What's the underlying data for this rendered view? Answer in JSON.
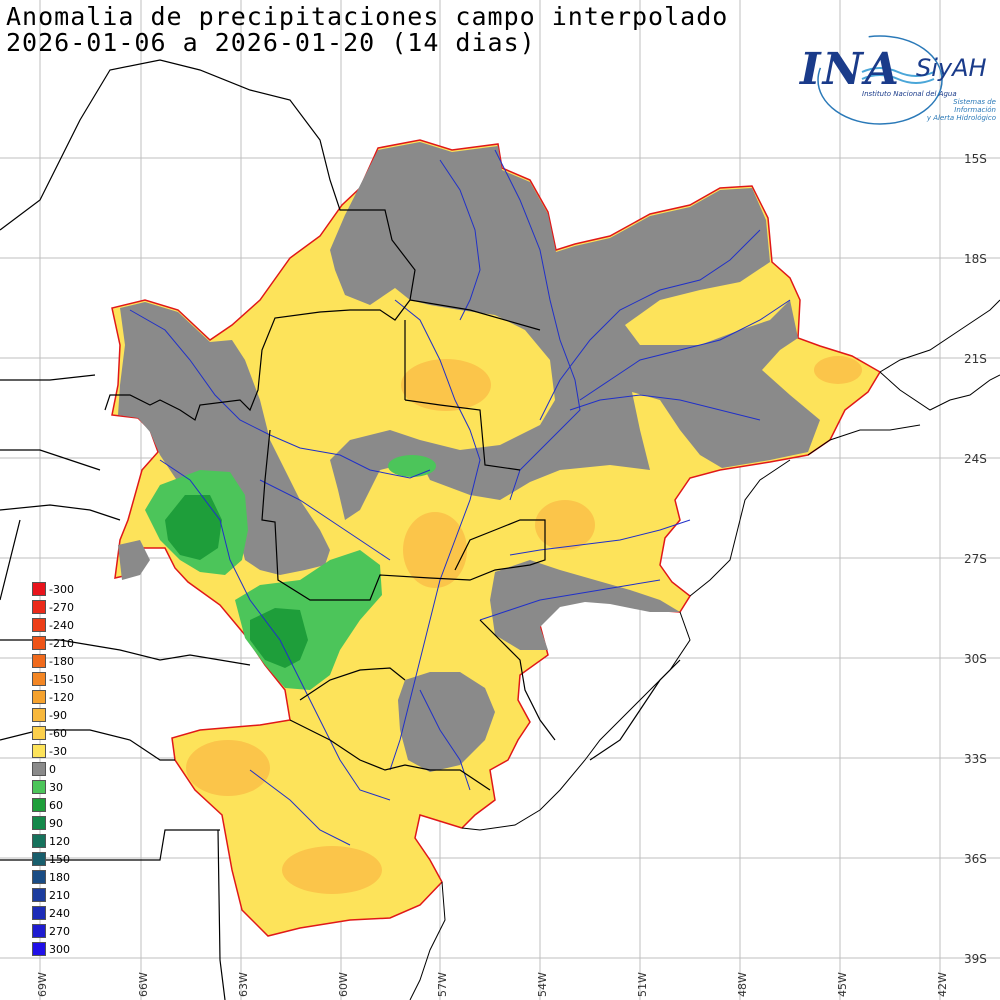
{
  "title_line1": "Anomalia de precipitaciones campo interpolado",
  "title_line2": "2026-01-06 a 2026-01-20 (14 dias)",
  "logo": {
    "acronym": "INA",
    "system": "SiyAH",
    "institute": "Instituto Nacional del Agua",
    "system_line1": "Sistemas de Información",
    "system_line2": "y Alerta Hidrológico"
  },
  "lat_labels": [
    "15S",
    "18S",
    "21S",
    "24S",
    "27S",
    "30S",
    "33S",
    "36S",
    "39S"
  ],
  "lon_labels": [
    "69W",
    "66W",
    "63W",
    "60W",
    "57W",
    "54W",
    "51W",
    "48W",
    "45W",
    "42W"
  ],
  "legend": [
    {
      "label": "-300",
      "color": "#e8141c"
    },
    {
      "label": "-270",
      "color": "#ea2a1a"
    },
    {
      "label": "-240",
      "color": "#ec3e18"
    },
    {
      "label": "-210",
      "color": "#ee5418"
    },
    {
      "label": "-180",
      "color": "#f06a1c"
    },
    {
      "label": "-150",
      "color": "#f38624"
    },
    {
      "label": "-120",
      "color": "#f5a22e"
    },
    {
      "label": "-90",
      "color": "#f8b83c"
    },
    {
      "label": "-60",
      "color": "#fcd04c"
    },
    {
      "label": "-30",
      "color": "#fde35a"
    },
    {
      "label": "0",
      "color": "#8a8a8a"
    },
    {
      "label": "30",
      "color": "#4cc55a"
    },
    {
      "label": "60",
      "color": "#1e9e3a"
    },
    {
      "label": "90",
      "color": "#14884a"
    },
    {
      "label": "120",
      "color": "#16725c"
    },
    {
      "label": "150",
      "color": "#185e6c"
    },
    {
      "label": "180",
      "color": "#1a4c84"
    },
    {
      "label": "210",
      "color": "#1c3c9e"
    },
    {
      "label": "240",
      "color": "#1c2cb8"
    },
    {
      "label": "270",
      "color": "#1e1cd0"
    },
    {
      "label": "300",
      "color": "#2010e8"
    }
  ]
}
